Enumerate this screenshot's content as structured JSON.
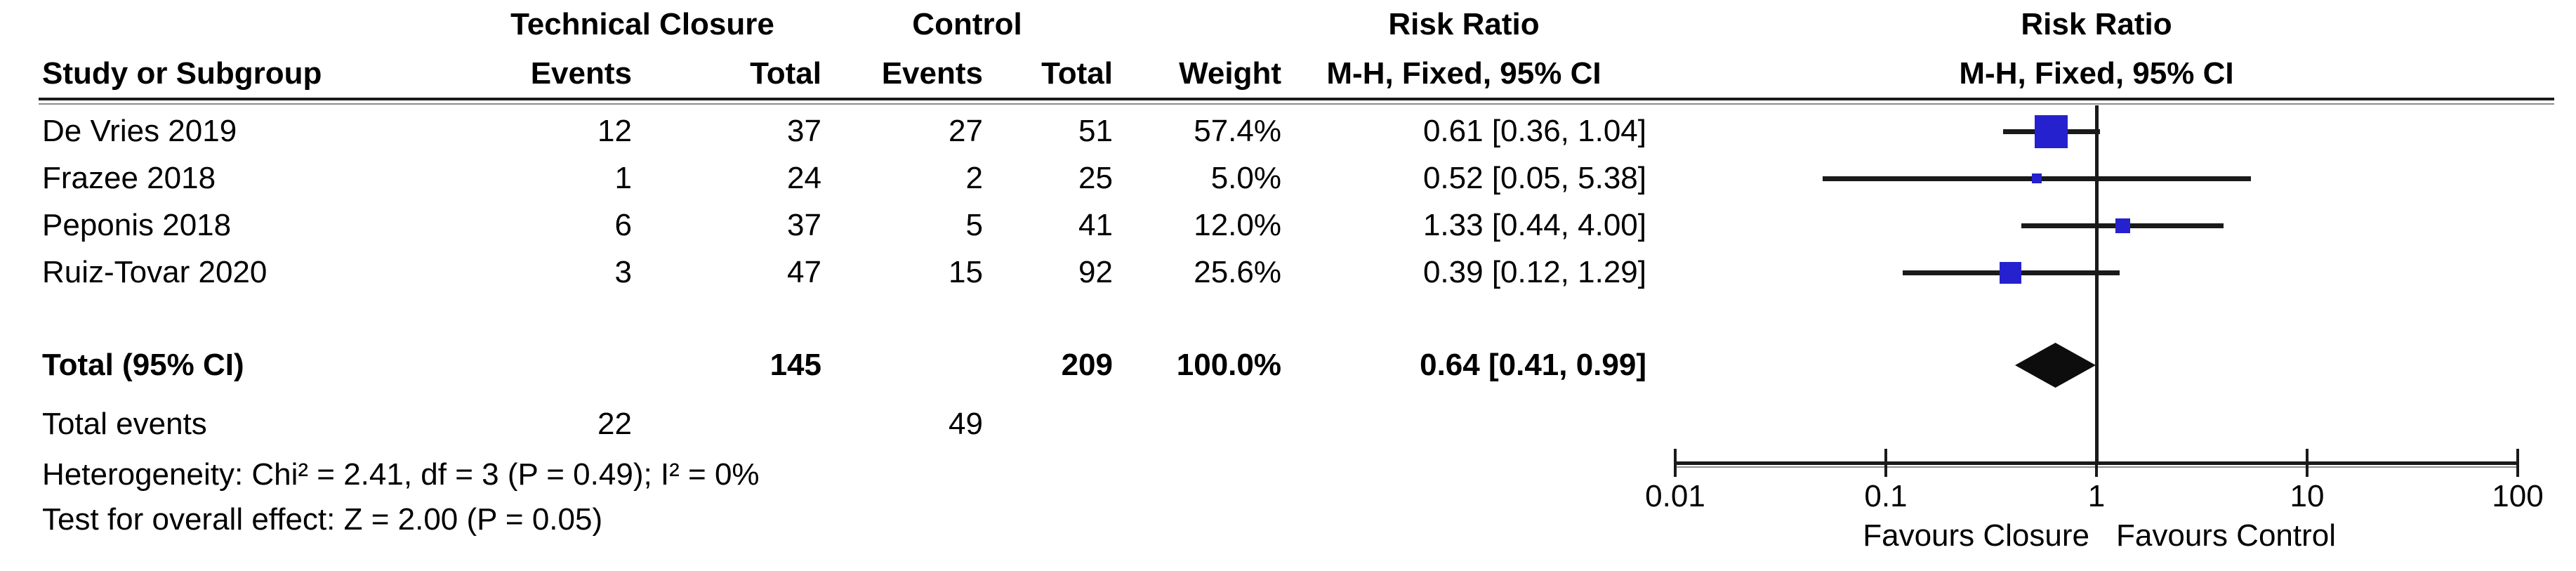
{
  "table": {
    "group_headers": {
      "treatment": "Technical Closure",
      "control": "Control",
      "risk_ratio": "Risk Ratio",
      "risk_ratio_plot": "Risk Ratio"
    },
    "col_headers": {
      "study": "Study or Subgroup",
      "treatment_events": "Events",
      "treatment_total": "Total",
      "control_events": "Events",
      "control_total": "Total",
      "weight": "Weight",
      "mh_ci": "M-H, Fixed, 95% CI",
      "mh_ci_plot": "M-H, Fixed, 95% CI"
    },
    "rows": [
      {
        "study": "De Vries 2019",
        "t_events": "12",
        "t_total": "37",
        "c_events": "27",
        "c_total": "51",
        "weight": "57.4%",
        "rr_ci": "0.61 [0.36, 1.04]"
      },
      {
        "study": "Frazee 2018",
        "t_events": "1",
        "t_total": "24",
        "c_events": "2",
        "c_total": "25",
        "weight": "5.0%",
        "rr_ci": "0.52 [0.05, 5.38]"
      },
      {
        "study": "Peponis 2018",
        "t_events": "6",
        "t_total": "37",
        "c_events": "5",
        "c_total": "41",
        "weight": "12.0%",
        "rr_ci": "1.33 [0.44, 4.00]"
      },
      {
        "study": "Ruiz-Tovar 2020",
        "t_events": "3",
        "t_total": "47",
        "c_events": "15",
        "c_total": "92",
        "weight": "25.6%",
        "rr_ci": "0.39 [0.12, 1.29]"
      }
    ],
    "total_row": {
      "label": "Total (95% CI)",
      "t_total": "145",
      "c_total": "209",
      "weight": "100.0%",
      "rr_ci": "0.64 [0.41, 0.99]"
    },
    "total_events_row": {
      "label": "Total events",
      "t_events": "22",
      "c_events": "49"
    },
    "heterogeneity": "Heterogeneity: Chi² = 2.41, df = 3 (P = 0.49); I² = 0%",
    "overall_effect": "Test for overall effect: Z = 2.00 (P = 0.05)"
  },
  "chart_data": {
    "type": "forest",
    "effect_measure": "Risk Ratio, M-H, Fixed, 95% CI",
    "x_scale": "log",
    "xlim": [
      0.01,
      100
    ],
    "x_ticks": [
      0.01,
      0.1,
      1,
      10,
      100
    ],
    "x_tick_labels": [
      "0.01",
      "0.1",
      "1",
      "10",
      "100"
    ],
    "null_line": 1,
    "favours_left": "Favours Closure",
    "favours_right": "Favours Control",
    "marker_color": "#2621CE",
    "line_color": "#1a1a1a",
    "diamond_color": "#0d0d0d",
    "studies": [
      {
        "name": "De Vries 2019",
        "rr": 0.61,
        "ci_low": 0.36,
        "ci_high": 1.04,
        "weight_pct": 57.4
      },
      {
        "name": "Frazee 2018",
        "rr": 0.52,
        "ci_low": 0.05,
        "ci_high": 5.38,
        "weight_pct": 5.0
      },
      {
        "name": "Peponis 2018",
        "rr": 1.33,
        "ci_low": 0.44,
        "ci_high": 4.0,
        "weight_pct": 12.0
      },
      {
        "name": "Ruiz-Tovar 2020",
        "rr": 0.39,
        "ci_low": 0.12,
        "ci_high": 1.29,
        "weight_pct": 25.6
      }
    ],
    "pooled": {
      "label": "Total (95% CI)",
      "rr": 0.64,
      "ci_low": 0.41,
      "ci_high": 0.99,
      "weight_pct": 100.0
    }
  }
}
